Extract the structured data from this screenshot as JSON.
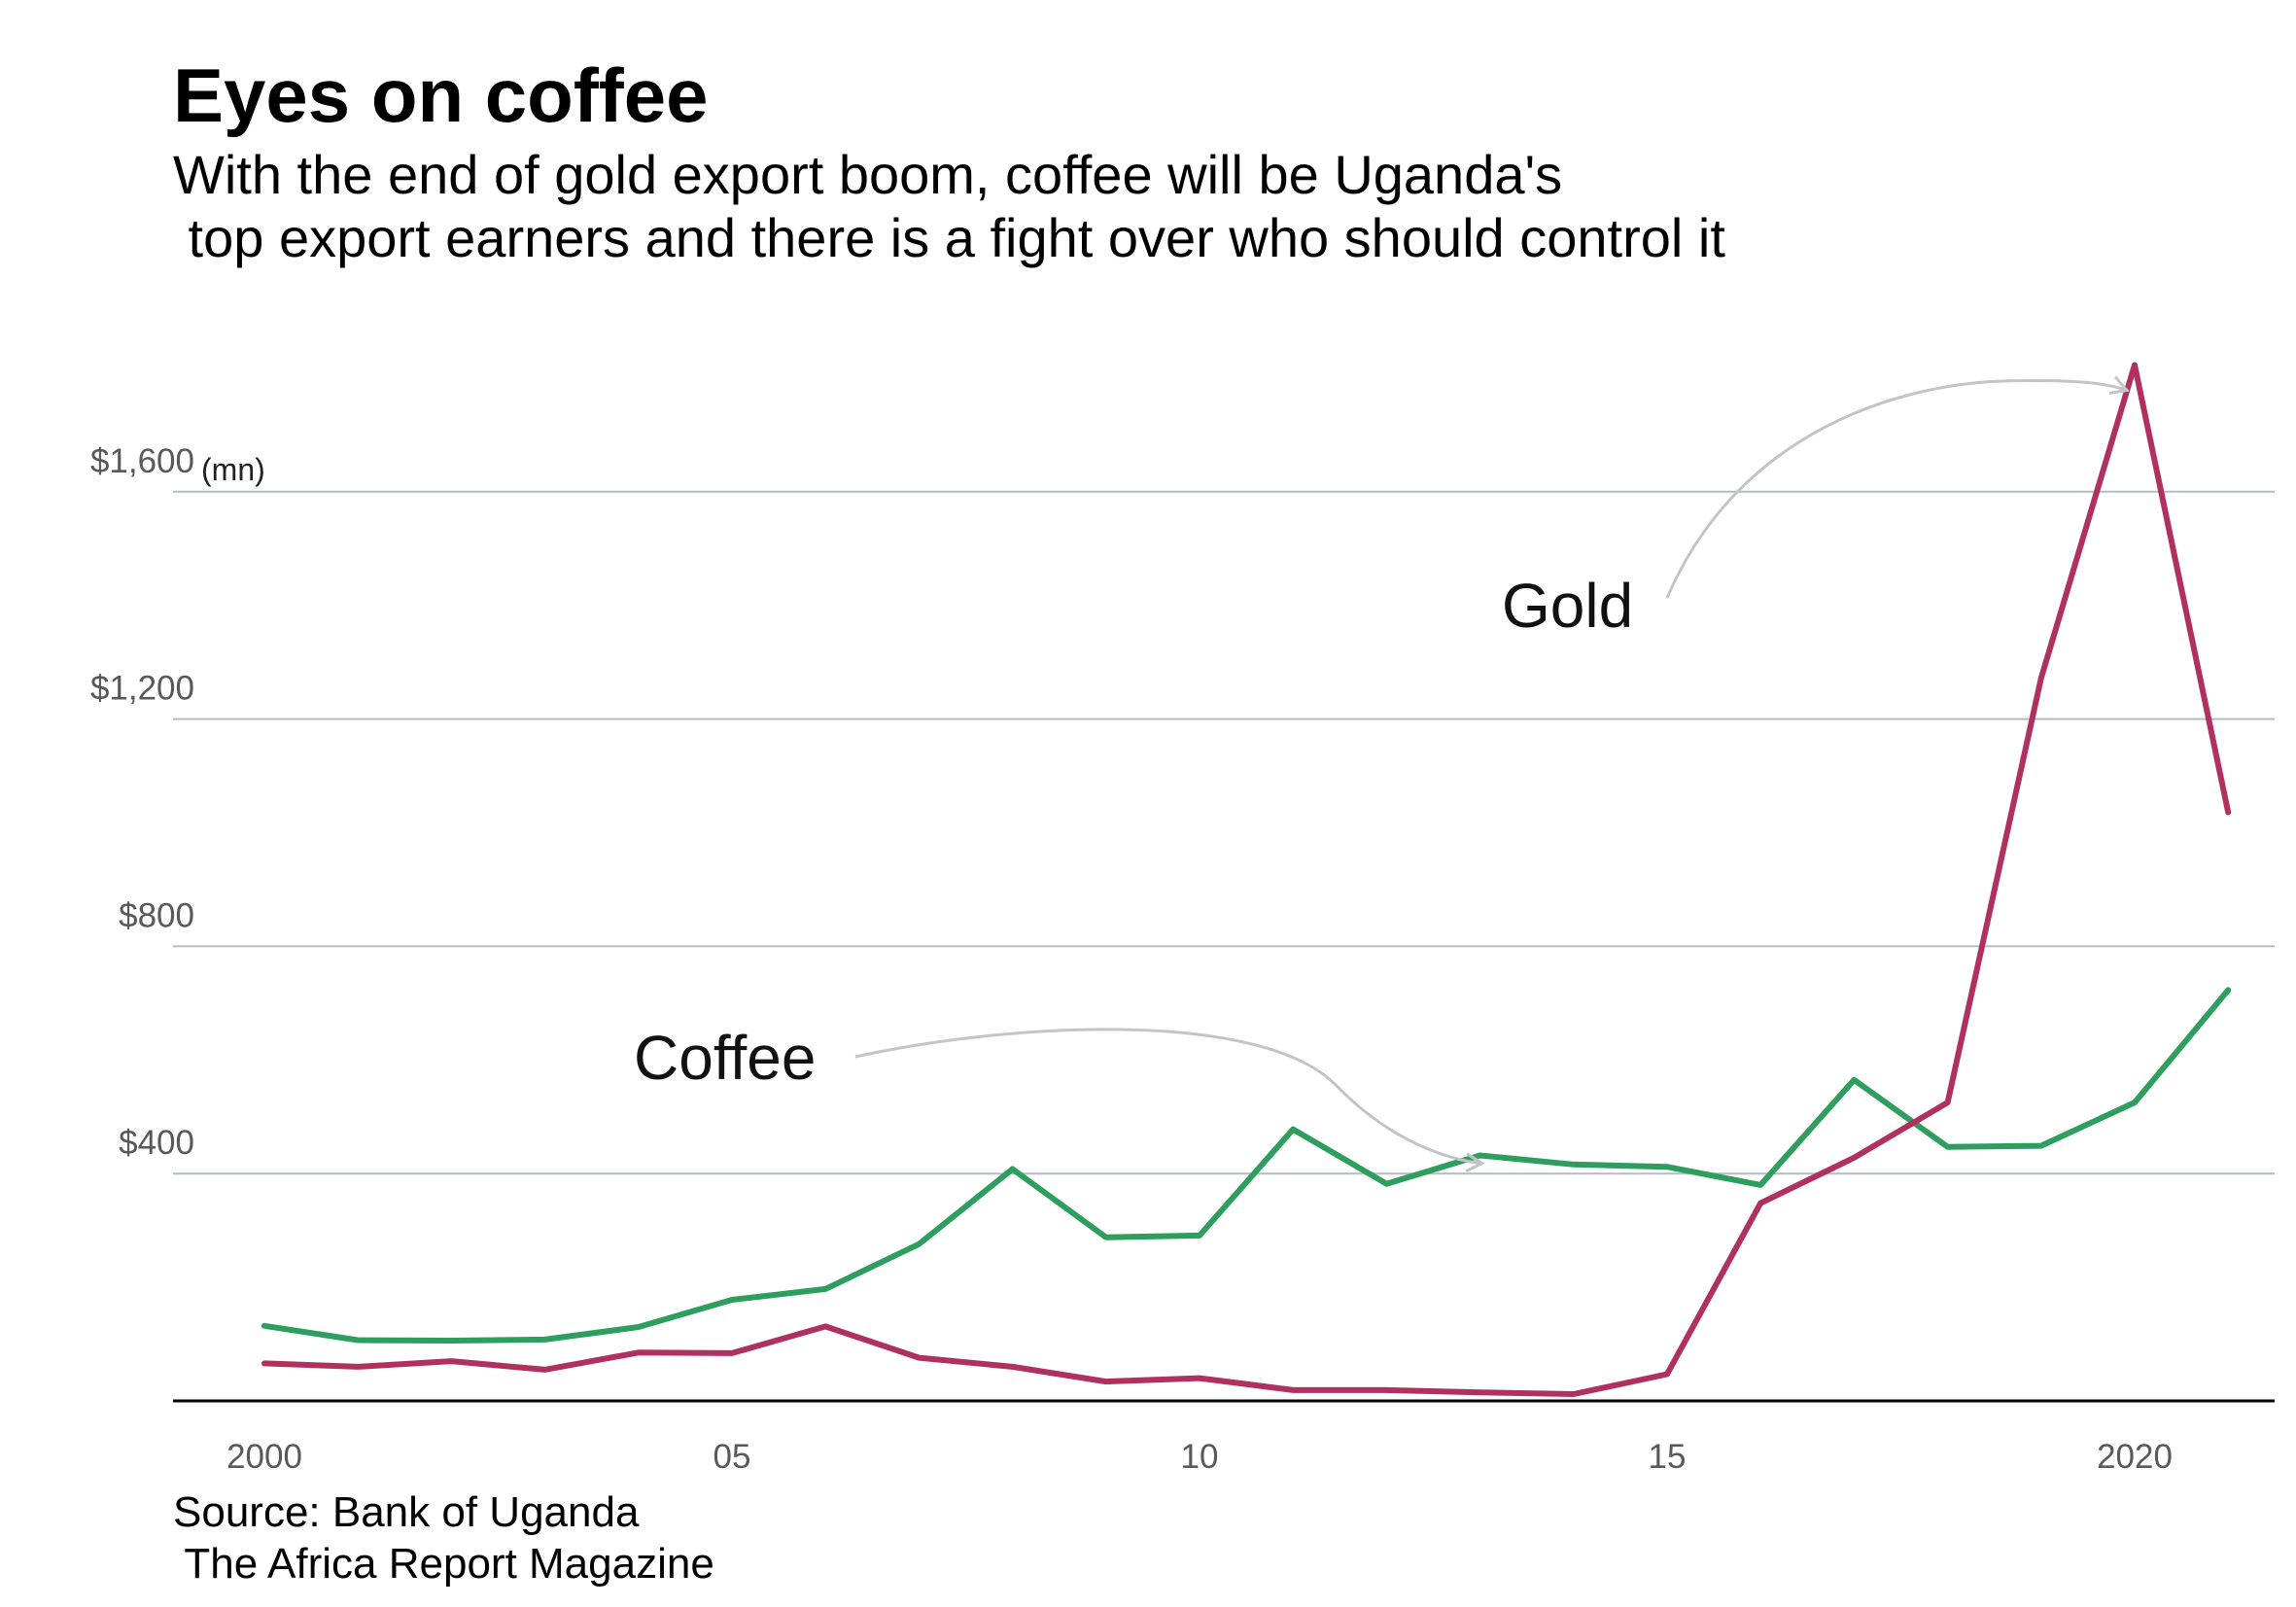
{
  "title": "Eyes on coffee",
  "subtitle": "With the end of gold export boom, coffee will be Uganda's\n top export earners and there is a fight over who should control it",
  "source": "Source: Bank of Uganda\n The Africa Report Magazine",
  "colors": {
    "coffee": "#2e9e5e",
    "gold": "#b03060",
    "grid": "#b4bcc4",
    "axis": "#000000",
    "arrow": "#c4c4c4"
  },
  "chart_data": {
    "type": "line",
    "title": "Eyes on coffee",
    "xlabel": "",
    "ylabel": "",
    "unit_label": "(mn)",
    "x": [
      2000,
      2001,
      2002,
      2003,
      2004,
      2005,
      2006,
      2007,
      2008,
      2009,
      2010,
      2011,
      2012,
      2013,
      2014,
      2015,
      2016,
      2017,
      2018,
      2019,
      2020,
      2021
    ],
    "xlim": [
      1999,
      2021.5
    ],
    "ylim": [
      0,
      1800
    ],
    "x_ticks": [
      {
        "value": 2000,
        "label": "2000"
      },
      {
        "value": 2005,
        "label": "05"
      },
      {
        "value": 2010,
        "label": "10"
      },
      {
        "value": 2015,
        "label": "15"
      },
      {
        "value": 2020,
        "label": "2020"
      }
    ],
    "y_ticks": [
      {
        "value": 400,
        "label": "$400"
      },
      {
        "value": 800,
        "label": "$800"
      },
      {
        "value": 1200,
        "label": "$1,200"
      },
      {
        "value": 1600,
        "label": "$1,600"
      }
    ],
    "grid": true,
    "series": [
      {
        "name": "Coffee",
        "values": [
          132,
          107,
          106,
          108,
          130,
          178,
          197,
          276,
          408,
          288,
          291,
          478,
          382,
          432,
          416,
          412,
          380,
          565,
          447,
          449,
          525,
          723
        ]
      },
      {
        "name": "Gold",
        "values": [
          66,
          60,
          70,
          55,
          85,
          84,
          131,
          76,
          60,
          34,
          40,
          19,
          19,
          15,
          12,
          47,
          348,
          428,
          525,
          1272,
          1823,
          1036
        ]
      }
    ],
    "annotations": [
      {
        "text": "Coffee",
        "points_to": {
          "x": 2013,
          "y": 432
        }
      },
      {
        "text": "Gold",
        "points_to": {
          "x": 2020,
          "y": 1770
        }
      }
    ]
  }
}
